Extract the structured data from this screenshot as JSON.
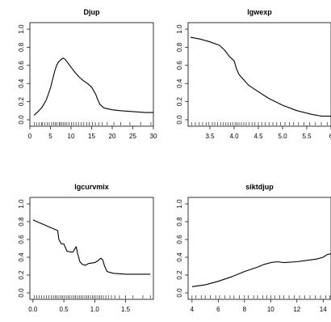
{
  "chart_data": [
    {
      "type": "line",
      "title": "Djup",
      "xlabel": "",
      "ylabel": "",
      "xlim": [
        0,
        30
      ],
      "ylim": [
        0,
        1
      ],
      "xticks": [
        0,
        5,
        10,
        15,
        20,
        25,
        30
      ],
      "xtick_labels": [
        "0",
        "5",
        "10",
        "15",
        "20",
        "25",
        "30"
      ],
      "yticks": [
        0,
        0.2,
        0.4,
        0.6,
        0.8,
        1.0
      ],
      "ytick_labels": [
        "0.0",
        "0.2",
        "0.4",
        "0.6",
        "0.8",
        "1.0"
      ],
      "x": [
        1,
        2,
        3,
        4,
        5,
        6,
        6.5,
        7,
        7.5,
        8,
        8.5,
        9,
        10,
        11,
        12,
        13,
        14,
        15,
        16,
        16.5,
        17,
        18,
        20,
        22,
        25,
        28,
        30
      ],
      "y": [
        0.05,
        0.09,
        0.14,
        0.22,
        0.35,
        0.53,
        0.6,
        0.64,
        0.66,
        0.68,
        0.67,
        0.64,
        0.58,
        0.52,
        0.47,
        0.43,
        0.4,
        0.36,
        0.28,
        0.22,
        0.17,
        0.13,
        0.11,
        0.1,
        0.09,
        0.08,
        0.08
      ],
      "rug": [
        1.1,
        1.6,
        2.2,
        2.8,
        3.1,
        3.6,
        4.2,
        4.7,
        5.3,
        5.8,
        6.2,
        6.6,
        7.1,
        7.4,
        7.8,
        8.2,
        8.6,
        9.0,
        9.5,
        10.1,
        10.6,
        11.2,
        11.8,
        12.5,
        13.1,
        13.8,
        14.4,
        15.2,
        15.9,
        16.7,
        17.6,
        18.8,
        20.4,
        22.1,
        24.3,
        26.9,
        29.4
      ]
    },
    {
      "type": "line",
      "title": "lgwexp",
      "xlabel": "",
      "ylabel": "",
      "xlim": [
        3.05,
        6.0
      ],
      "ylim": [
        0,
        1
      ],
      "xticks": [
        3.5,
        4.0,
        4.5,
        5.0,
        5.5,
        6.0
      ],
      "xtick_labels": [
        "3.5",
        "4.0",
        "4.5",
        "5.0",
        "5.5",
        "6"
      ],
      "yticks": [
        0,
        0.2,
        0.4,
        0.6,
        0.8,
        1.0
      ],
      "ytick_labels": [
        "0.0",
        "0.2",
        "0.4",
        "0.6",
        "0.8",
        "1.0"
      ],
      "x": [
        3.1,
        3.3,
        3.5,
        3.7,
        3.8,
        3.9,
        4.0,
        4.05,
        4.1,
        4.2,
        4.3,
        4.5,
        4.7,
        5.0,
        5.3,
        5.6,
        5.8,
        6.0
      ],
      "y": [
        0.91,
        0.89,
        0.86,
        0.82,
        0.77,
        0.7,
        0.65,
        0.56,
        0.5,
        0.44,
        0.38,
        0.31,
        0.24,
        0.16,
        0.1,
        0.06,
        0.04,
        0.04
      ],
      "rug": [
        3.12,
        3.2,
        3.28,
        3.35,
        3.42,
        3.48,
        3.55,
        3.6,
        3.66,
        3.72,
        3.78,
        3.83,
        3.88,
        3.93,
        3.97,
        4.02,
        4.06,
        4.1,
        4.15,
        4.2,
        4.25,
        4.31,
        4.37,
        4.43,
        4.5,
        4.57,
        4.64,
        4.72,
        4.8,
        4.88,
        4.96,
        5.05,
        5.14,
        5.23,
        5.33,
        5.44,
        5.56,
        5.68,
        5.8,
        5.92
      ]
    },
    {
      "type": "line",
      "title": "lgcurvmix",
      "xlabel": "",
      "ylabel": "",
      "xlim": [
        -0.05,
        1.95
      ],
      "ylim": [
        0,
        1
      ],
      "xticks": [
        0.0,
        0.5,
        1.0,
        1.5
      ],
      "xtick_labels": [
        "0.0",
        "0.5",
        "1.0",
        "1.5"
      ],
      "yticks": [
        0,
        0.2,
        0.4,
        0.6,
        0.8,
        1.0
      ],
      "ytick_labels": [
        "0.0",
        "0.2",
        "0.4",
        "0.6",
        "0.8",
        "1.0"
      ],
      "x": [
        0.0,
        0.1,
        0.2,
        0.3,
        0.4,
        0.42,
        0.46,
        0.5,
        0.55,
        0.6,
        0.65,
        0.7,
        0.72,
        0.76,
        0.8,
        0.85,
        0.9,
        1.0,
        1.05,
        1.1,
        1.13,
        1.16,
        1.2,
        1.3,
        1.5,
        1.7,
        1.9
      ],
      "y": [
        0.82,
        0.79,
        0.76,
        0.73,
        0.7,
        0.6,
        0.55,
        0.55,
        0.47,
        0.46,
        0.46,
        0.52,
        0.45,
        0.35,
        0.32,
        0.31,
        0.33,
        0.34,
        0.36,
        0.39,
        0.37,
        0.3,
        0.24,
        0.22,
        0.21,
        0.21,
        0.21
      ],
      "rug": [
        0.02,
        0.06,
        0.1,
        0.14,
        0.18,
        0.22,
        0.26,
        0.3,
        0.33,
        0.36,
        0.39,
        0.42,
        0.45,
        0.48,
        0.51,
        0.54,
        0.57,
        0.6,
        0.63,
        0.66,
        0.69,
        0.72,
        0.75,
        0.78,
        0.81,
        0.84,
        0.87,
        0.9,
        0.93,
        0.96,
        0.99,
        1.02,
        1.05,
        1.08,
        1.11,
        1.14,
        1.18,
        1.22,
        1.27,
        1.33,
        1.4,
        1.5,
        1.62,
        1.78,
        1.9
      ]
    },
    {
      "type": "line",
      "title": "siktdjup",
      "xlabel": "",
      "ylabel": "",
      "xlim": [
        3.7,
        14.6
      ],
      "ylim": [
        0,
        1
      ],
      "xticks": [
        4,
        6,
        8,
        10,
        12,
        14
      ],
      "xtick_labels": [
        "4",
        "6",
        "8",
        "10",
        "12",
        "14"
      ],
      "yticks": [
        0,
        0.2,
        0.4,
        0.6,
        0.8,
        1.0
      ],
      "ytick_labels": [
        "0.0",
        "0.2",
        "0.4",
        "0.6",
        "0.8",
        "1.0"
      ],
      "x": [
        4.0,
        5.0,
        6.0,
        7.0,
        8.0,
        9.0,
        9.5,
        10.0,
        10.5,
        11.0,
        12.0,
        13.0,
        13.5,
        14.0,
        14.3,
        14.6
      ],
      "y": [
        0.07,
        0.09,
        0.13,
        0.18,
        0.24,
        0.29,
        0.32,
        0.34,
        0.35,
        0.34,
        0.35,
        0.37,
        0.38,
        0.4,
        0.43,
        0.44
      ],
      "rug": [
        4.0,
        4.3,
        4.7,
        5.0,
        5.4,
        5.8,
        6.1,
        6.5,
        6.9,
        7.2,
        7.6,
        8.0,
        8.3,
        8.7,
        9.0,
        9.4,
        9.7,
        10.0,
        10.3,
        10.7,
        11.0,
        11.4,
        11.8,
        12.2,
        12.6,
        13.0,
        13.4,
        13.8,
        14.2,
        14.5
      ]
    }
  ]
}
